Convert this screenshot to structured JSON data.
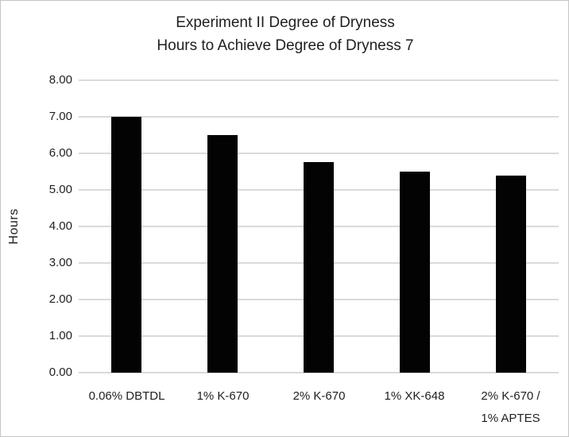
{
  "chart_data": {
    "type": "bar",
    "title_lines": [
      "Experiment II Degree of Dryness",
      "Hours to Achieve Degree of Dryness 7"
    ],
    "categories": [
      "0.06% DBTDL",
      "1% K-670",
      "2% K-670",
      "1% XK-648",
      "2% K-670 /\n1% APTES"
    ],
    "values": [
      7.0,
      6.5,
      5.75,
      5.5,
      5.4
    ],
    "xlabel": "",
    "ylabel": "Hours",
    "ylim": [
      0,
      8
    ],
    "ytick_step": 1,
    "ytick_labels_top_to_bottom": [
      "8.00",
      "7.00",
      "6.00",
      "5.00",
      "4.00",
      "3.00",
      "2.00",
      "1.00",
      "0.00"
    ],
    "grid": "horizontal",
    "legend": "none",
    "bar_color": "#030303",
    "gridline_color": "#dadada",
    "text_color": "#1f1f1f",
    "background_color": "#ffffff"
  }
}
